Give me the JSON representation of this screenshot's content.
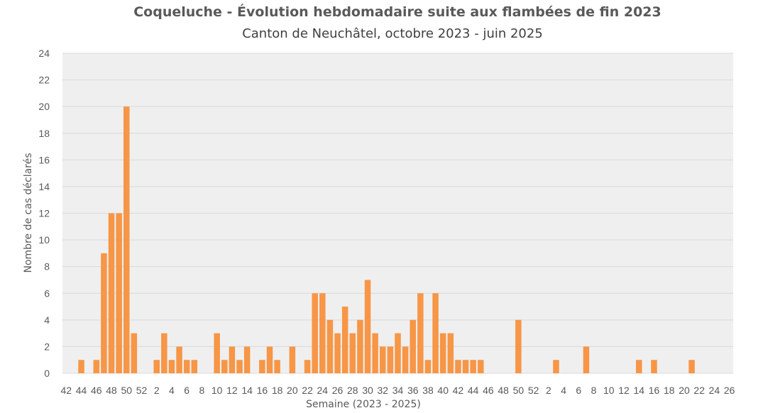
{
  "chart_data": {
    "type": "bar",
    "title": "Coqueluche - Évolution hebdomadaire suite aux flambées de fin 2023",
    "subtitle": "Canton de Neuchâtel, octobre 2023 - juin 2025",
    "xlabel": "Semaine (2023 - 2025)",
    "ylabel": "Nombre de cas déclarés",
    "ylim": [
      0,
      24
    ],
    "yticks": [
      0,
      2,
      4,
      6,
      8,
      10,
      12,
      14,
      16,
      18,
      20,
      22,
      24
    ],
    "grid": true,
    "legend": "none",
    "bar_color": "#F79646",
    "plot_background": "#EFEFEF",
    "categories": [
      "42",
      "43",
      "44",
      "45",
      "46",
      "47",
      "48",
      "49",
      "50",
      "51",
      "52",
      "1",
      "2",
      "3",
      "4",
      "5",
      "6",
      "7",
      "8",
      "9",
      "10",
      "11",
      "12",
      "13",
      "14",
      "15",
      "16",
      "17",
      "18",
      "19",
      "20",
      "21",
      "22",
      "23",
      "24",
      "25",
      "26",
      "27",
      "28",
      "29",
      "30",
      "31",
      "32",
      "33",
      "34",
      "35",
      "36",
      "37",
      "38",
      "39",
      "40",
      "41",
      "42",
      "43",
      "44",
      "45",
      "46",
      "47",
      "48",
      "49",
      "50",
      "51",
      "52",
      "1",
      "2",
      "3",
      "4",
      "5",
      "6",
      "7",
      "8",
      "9",
      "10",
      "11",
      "12",
      "13",
      "14",
      "15",
      "16",
      "17",
      "18",
      "19",
      "20",
      "21",
      "22",
      "23",
      "24",
      "25",
      "26"
    ],
    "tick_labels": [
      "42",
      "44",
      "46",
      "48",
      "50",
      "52",
      "2",
      "4",
      "6",
      "8",
      "10",
      "12",
      "14",
      "16",
      "18",
      "20",
      "22",
      "24",
      "26",
      "28",
      "30",
      "32",
      "34",
      "36",
      "38",
      "40",
      "42",
      "44",
      "46",
      "48",
      "50",
      "52",
      "2",
      "4",
      "6",
      "8",
      "10",
      "12",
      "14",
      "16",
      "18",
      "20",
      "22",
      "24",
      "26"
    ],
    "values": [
      0,
      0,
      1,
      0,
      1,
      9,
      12,
      12,
      20,
      3,
      0,
      0,
      1,
      3,
      1,
      2,
      1,
      1,
      0,
      0,
      3,
      1,
      2,
      1,
      2,
      0,
      1,
      2,
      1,
      0,
      2,
      0,
      1,
      6,
      6,
      4,
      3,
      5,
      3,
      4,
      7,
      3,
      2,
      2,
      3,
      2,
      4,
      6,
      1,
      6,
      3,
      3,
      1,
      1,
      1,
      1,
      0,
      0,
      0,
      0,
      4,
      0,
      0,
      0,
      0,
      1,
      0,
      0,
      0,
      2,
      0,
      0,
      0,
      0,
      0,
      0,
      1,
      0,
      1,
      0,
      0,
      0,
      0,
      1,
      0,
      0,
      0,
      0,
      0
    ]
  }
}
